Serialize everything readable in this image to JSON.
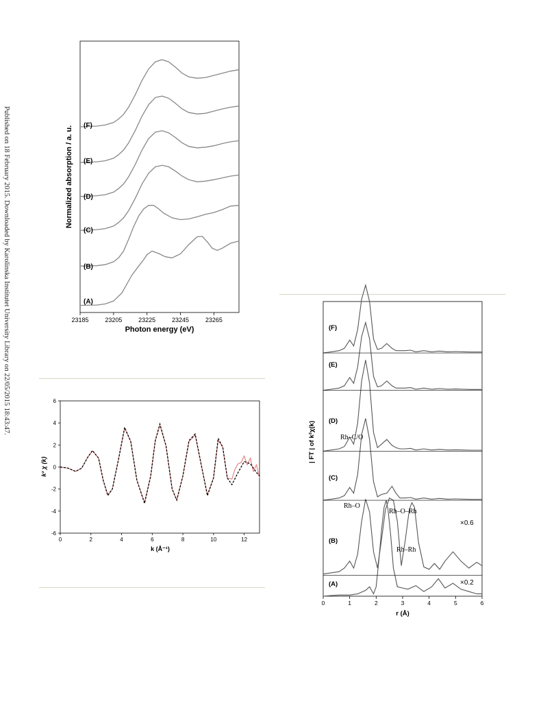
{
  "side_note": "Published on 18 February 2015. Downloaded by Karolinska Institutet University Library on 22/05/2015 18:43:47.",
  "chart_data": [
    {
      "id": "xanes",
      "type": "line",
      "xlabel": "Photon energy (eV)",
      "ylabel": "Normalized absorption / a. u.",
      "xlim": [
        23185,
        23280
      ],
      "ylim": [
        -0.2,
        7.4
      ],
      "xticks": [
        23185,
        23205,
        23225,
        23245,
        23265
      ],
      "grid": false,
      "series": [
        {
          "name": "(A)",
          "offset": 0.0,
          "x": [
            23185,
            23195,
            23200,
            23205,
            23210,
            23213,
            23216,
            23220,
            23223,
            23225,
            23228,
            23232,
            23236,
            23240,
            23245,
            23250,
            23255,
            23258,
            23261,
            23264,
            23267,
            23270,
            23275,
            23280
          ],
          "y": [
            0.0,
            0.01,
            0.04,
            0.12,
            0.35,
            0.6,
            0.85,
            1.1,
            1.28,
            1.42,
            1.52,
            1.45,
            1.36,
            1.33,
            1.44,
            1.7,
            1.92,
            1.93,
            1.78,
            1.6,
            1.54,
            1.6,
            1.74,
            1.8
          ]
        },
        {
          "name": "(B)",
          "offset": 1.1,
          "x": [
            23185,
            23195,
            23200,
            23205,
            23208,
            23211,
            23214,
            23217,
            23220,
            23223,
            23226,
            23229,
            23232,
            23235,
            23240,
            23245,
            23250,
            23255,
            23260,
            23265,
            23270,
            23275,
            23280
          ],
          "y": [
            0.0,
            0.01,
            0.04,
            0.12,
            0.23,
            0.42,
            0.75,
            1.1,
            1.4,
            1.6,
            1.7,
            1.7,
            1.6,
            1.48,
            1.35,
            1.3,
            1.32,
            1.38,
            1.45,
            1.5,
            1.58,
            1.68,
            1.7
          ]
        },
        {
          "name": "(C)",
          "offset": 2.1,
          "x": [
            23185,
            23195,
            23200,
            23205,
            23208,
            23211,
            23214,
            23218,
            23222,
            23226,
            23230,
            23234,
            23238,
            23242,
            23246,
            23250,
            23255,
            23260,
            23265,
            23270,
            23275,
            23280
          ],
          "y": [
            0.0,
            0.02,
            0.05,
            0.12,
            0.22,
            0.35,
            0.55,
            0.9,
            1.3,
            1.6,
            1.78,
            1.82,
            1.78,
            1.66,
            1.52,
            1.42,
            1.36,
            1.38,
            1.42,
            1.47,
            1.52,
            1.55
          ]
        },
        {
          "name": "(D)",
          "offset": 3.05,
          "x": [
            23185,
            23195,
            23200,
            23205,
            23208,
            23211,
            23214,
            23218,
            23222,
            23226,
            23230,
            23234,
            23238,
            23242,
            23246,
            23250,
            23255,
            23260,
            23265,
            23270,
            23275,
            23280
          ],
          "y": [
            0.0,
            0.02,
            0.05,
            0.12,
            0.22,
            0.35,
            0.55,
            0.9,
            1.3,
            1.62,
            1.8,
            1.84,
            1.78,
            1.65,
            1.5,
            1.4,
            1.36,
            1.38,
            1.42,
            1.48,
            1.53,
            1.56
          ]
        },
        {
          "name": "(E)",
          "offset": 4.0,
          "x": [
            23185,
            23195,
            23200,
            23205,
            23208,
            23211,
            23214,
            23218,
            23222,
            23226,
            23230,
            23234,
            23238,
            23242,
            23246,
            23250,
            23255,
            23260,
            23265,
            23270,
            23275,
            23280
          ],
          "y": [
            0.0,
            0.02,
            0.05,
            0.12,
            0.22,
            0.35,
            0.55,
            0.9,
            1.3,
            1.62,
            1.82,
            1.86,
            1.8,
            1.66,
            1.5,
            1.4,
            1.36,
            1.38,
            1.44,
            1.5,
            1.55,
            1.58
          ]
        },
        {
          "name": "(F)",
          "offset": 5.0,
          "x": [
            23185,
            23195,
            23200,
            23205,
            23208,
            23211,
            23214,
            23218,
            23222,
            23226,
            23230,
            23234,
            23238,
            23242,
            23246,
            23250,
            23255,
            23260,
            23265,
            23270,
            23275,
            23280
          ],
          "y": [
            0.0,
            0.02,
            0.05,
            0.12,
            0.22,
            0.35,
            0.55,
            0.9,
            1.3,
            1.62,
            1.82,
            1.88,
            1.82,
            1.67,
            1.5,
            1.4,
            1.36,
            1.38,
            1.44,
            1.5,
            1.56,
            1.6
          ]
        }
      ]
    },
    {
      "id": "exafs",
      "type": "line",
      "xlabel": "k (Å⁻¹)",
      "ylabel": "k² χ (k)",
      "xlim": [
        0,
        13
      ],
      "ylim": [
        -6,
        6
      ],
      "xticks": [
        0,
        2,
        4,
        6,
        8,
        10,
        12
      ],
      "yticks": [
        -6,
        -4,
        -2,
        0,
        2,
        4,
        6
      ],
      "grid": false,
      "series": [
        {
          "name": "",
          "style": "experimental",
          "color": "#e07070",
          "x": [
            0,
            0.5,
            1,
            1.4,
            1.8,
            2.1,
            2.5,
            2.8,
            3.1,
            3.4,
            3.8,
            4.2,
            4.6,
            5.0,
            5.5,
            5.9,
            6.2,
            6.5,
            6.9,
            7.3,
            7.6,
            8.0,
            8.4,
            8.8,
            9.2,
            9.6,
            10.0,
            10.3,
            10.6,
            10.9,
            11.2,
            11.4,
            11.6,
            11.8,
            12.0,
            12.2,
            12.4,
            12.6,
            12.8,
            13.0
          ],
          "y": [
            0,
            -0.1,
            -0.4,
            -0.1,
            0.9,
            1.45,
            0.8,
            -1.2,
            -2.5,
            -2.0,
            0.7,
            3.5,
            2.3,
            -1.2,
            -3.2,
            -0.8,
            2.4,
            3.8,
            1.9,
            -2.0,
            -3.0,
            -0.8,
            2.3,
            2.9,
            0.2,
            -2.5,
            -1.0,
            2.4,
            1.8,
            -1.0,
            -1.1,
            -0.2,
            0.3,
            0.4,
            1.0,
            0.2,
            0.8,
            -0.4,
            0.2,
            -1.0
          ]
        },
        {
          "name": "",
          "style": "fit",
          "color": "#000000",
          "x": [
            0,
            0.5,
            1,
            1.4,
            1.8,
            2.1,
            2.5,
            2.8,
            3.1,
            3.4,
            3.8,
            4.2,
            4.6,
            5.0,
            5.5,
            5.9,
            6.2,
            6.5,
            6.9,
            7.3,
            7.6,
            8.0,
            8.4,
            8.8,
            9.2,
            9.6,
            10.0,
            10.3,
            10.6,
            10.9,
            11.2,
            11.6,
            12.0,
            12.4,
            12.8,
            13.0
          ],
          "y": [
            0,
            -0.1,
            -0.4,
            -0.1,
            0.9,
            1.5,
            0.8,
            -1.2,
            -2.6,
            -2.0,
            0.7,
            3.6,
            2.3,
            -1.2,
            -3.3,
            -0.8,
            2.4,
            3.9,
            1.9,
            -2.0,
            -3.0,
            -0.8,
            2.4,
            3.0,
            0.2,
            -2.6,
            -1.0,
            2.6,
            1.8,
            -1.0,
            -1.6,
            -0.5,
            0.5,
            0.3,
            -0.5,
            -0.8
          ]
        }
      ]
    },
    {
      "id": "ft",
      "type": "line",
      "xlabel": "r (Å)",
      "ylabel": "| FT | of k²χ(k)",
      "xlim": [
        0,
        6
      ],
      "ylim": [
        0,
        12.6
      ],
      "xticks": [
        0,
        1,
        2,
        3,
        4,
        5,
        6
      ],
      "grid": false,
      "series": [
        {
          "name": "(A)",
          "offset": 0.0,
          "scale_label": "×0.2",
          "x": [
            0,
            0.3,
            0.6,
            1.0,
            1.3,
            1.6,
            1.75,
            1.9,
            2.0,
            2.1,
            2.2,
            2.3,
            2.38,
            2.45,
            2.55,
            2.65,
            2.8,
            3.0,
            3.2,
            3.5,
            3.8,
            4.1,
            4.35,
            4.6,
            4.9,
            5.2,
            5.5,
            5.8,
            6.0
          ],
          "y": [
            0,
            0.03,
            0.05,
            0.05,
            0.1,
            0.25,
            0.4,
            0.1,
            0.4,
            1.5,
            2.8,
            3.8,
            4.1,
            3.7,
            2.6,
            1.2,
            0.4,
            0.35,
            0.3,
            0.45,
            0.2,
            0.4,
            0.75,
            0.35,
            0.55,
            0.3,
            0.2,
            0.1,
            0.1
          ]
        },
        {
          "name": "(B)",
          "offset": 0.9,
          "scale_label": "×0.6",
          "x": [
            0,
            0.3,
            0.6,
            0.8,
            1.0,
            1.15,
            1.3,
            1.45,
            1.6,
            1.75,
            1.9,
            2.05,
            2.2,
            2.35,
            2.5,
            2.65,
            2.8,
            2.95,
            3.1,
            3.25,
            3.35,
            3.45,
            3.6,
            3.8,
            4.0,
            4.2,
            4.4,
            4.6,
            4.9,
            5.2,
            5.5,
            5.8,
            6.0
          ],
          "y": [
            0.05,
            0.1,
            0.15,
            0.3,
            0.6,
            0.3,
            0.9,
            2.3,
            3.25,
            2.7,
            1.0,
            0.3,
            1.5,
            2.8,
            3.3,
            3.2,
            2.3,
            0.4,
            1.5,
            2.8,
            3.1,
            2.9,
            1.4,
            0.35,
            0.25,
            0.5,
            0.25,
            0.6,
            1.0,
            0.6,
            0.3,
            0.55,
            0.4
          ]
        },
        {
          "name": "(C)",
          "offset": 4.1,
          "x": [
            0,
            0.3,
            0.6,
            0.8,
            1.0,
            1.15,
            1.3,
            1.45,
            1.6,
            1.75,
            1.9,
            2.05,
            2.2,
            2.4,
            2.6,
            2.75,
            2.9,
            3.1,
            3.3,
            3.5,
            3.8,
            4.1,
            4.4,
            4.7,
            5.0,
            5.3,
            5.6,
            6.0
          ],
          "y": [
            0,
            0.05,
            0.1,
            0.2,
            0.55,
            0.3,
            1.1,
            2.8,
            3.5,
            2.6,
            0.8,
            0.15,
            0.25,
            0.3,
            0.6,
            0.3,
            0.1,
            0.1,
            0.12,
            0.05,
            0.1,
            0.05,
            0.08,
            0.05,
            0.06,
            0.05,
            0.04,
            0.04
          ]
        },
        {
          "name": "(D)",
          "offset": 6.2,
          "x": [
            0,
            0.3,
            0.6,
            0.8,
            1.0,
            1.15,
            1.3,
            1.45,
            1.6,
            1.75,
            1.9,
            2.05,
            2.2,
            2.4,
            2.6,
            2.75,
            2.9,
            3.1,
            3.3,
            3.5,
            3.8,
            4.1,
            4.4,
            4.7,
            5.0,
            5.3,
            5.6,
            6.0
          ],
          "y": [
            0,
            0.05,
            0.1,
            0.2,
            0.6,
            0.3,
            1.2,
            3.0,
            3.9,
            2.9,
            0.8,
            0.15,
            0.3,
            0.5,
            0.25,
            0.15,
            0.1,
            0.1,
            0.12,
            0.05,
            0.1,
            0.05,
            0.08,
            0.05,
            0.06,
            0.05,
            0.04,
            0.04
          ]
        },
        {
          "name": "(E)",
          "offset": 8.8,
          "x": [
            0,
            0.3,
            0.6,
            0.8,
            1.0,
            1.15,
            1.3,
            1.45,
            1.6,
            1.75,
            1.9,
            2.05,
            2.2,
            2.4,
            2.6,
            2.75,
            2.9,
            3.1,
            3.3,
            3.5,
            3.8,
            4.1,
            4.4,
            4.7,
            5.0,
            5.3,
            5.6,
            6.0
          ],
          "y": [
            0,
            0.05,
            0.1,
            0.2,
            0.55,
            0.3,
            1.0,
            2.3,
            2.9,
            2.2,
            0.6,
            0.15,
            0.2,
            0.4,
            0.2,
            0.1,
            0.1,
            0.1,
            0.12,
            0.05,
            0.1,
            0.05,
            0.08,
            0.05,
            0.06,
            0.05,
            0.04,
            0.04
          ]
        },
        {
          "name": "(F)",
          "offset": 10.4,
          "x": [
            0,
            0.3,
            0.6,
            0.8,
            1.0,
            1.15,
            1.3,
            1.45,
            1.6,
            1.75,
            1.9,
            2.05,
            2.2,
            2.4,
            2.6,
            2.75,
            2.9,
            3.1,
            3.3,
            3.5,
            3.8,
            4.1,
            4.4,
            4.7,
            5.0,
            5.3,
            5.6,
            6.0
          ],
          "y": [
            0,
            0.05,
            0.1,
            0.2,
            0.55,
            0.3,
            1.0,
            2.3,
            2.9,
            2.2,
            0.6,
            0.15,
            0.2,
            0.4,
            0.2,
            0.1,
            0.1,
            0.1,
            0.12,
            0.05,
            0.1,
            0.05,
            0.08,
            0.05,
            0.06,
            0.05,
            0.04,
            0.04
          ]
        }
      ],
      "annotations": [
        "Rh–C/O",
        "Rh–O–Rh",
        "Rh–O",
        "Rh–Rh"
      ]
    }
  ]
}
